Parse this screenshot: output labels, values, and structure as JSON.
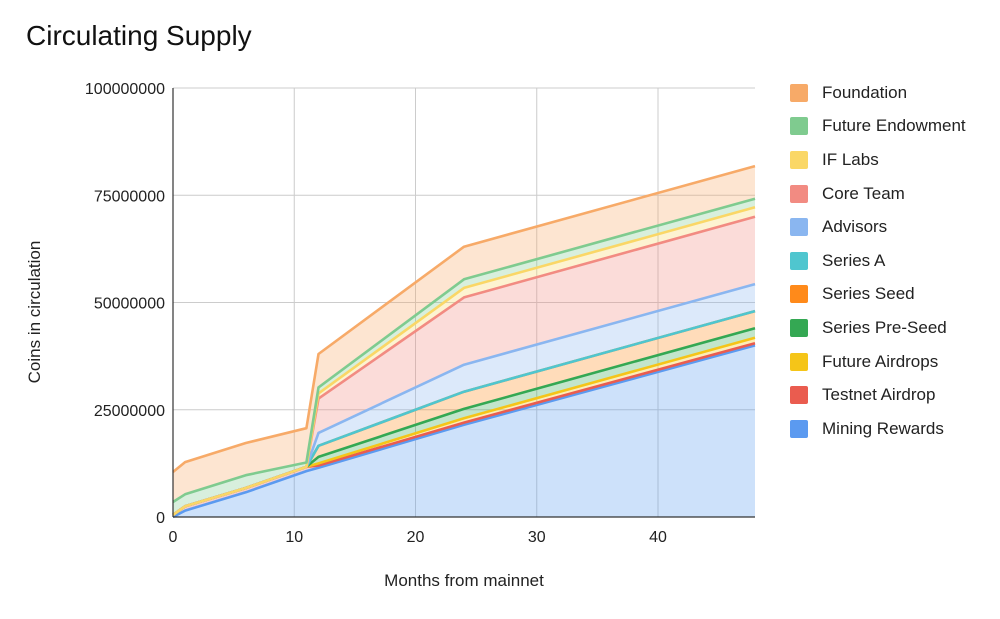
{
  "chart_data": {
    "type": "area",
    "stacked": true,
    "title": "Circulating Supply",
    "xlabel": "Months from mainnet",
    "ylabel": "Coins in circulation",
    "xlim": [
      0,
      48
    ],
    "ylim": [
      0,
      100000000
    ],
    "x_ticks": [
      0,
      10,
      20,
      30,
      40
    ],
    "y_ticks": [
      "0",
      "25000000",
      "50000000",
      "75000000",
      "100000000"
    ],
    "grid": true,
    "legend_position": "right",
    "series": [
      {
        "name": "Mining Rewards",
        "color": "#5b9af0",
        "points": [
          [
            0,
            0
          ],
          [
            1,
            1500000
          ],
          [
            6,
            5750000
          ],
          [
            11,
            10700000
          ],
          [
            12,
            11500000
          ],
          [
            24,
            21500000
          ],
          [
            48,
            40000000
          ]
        ]
      },
      {
        "name": "Testnet Airdrop",
        "color": "#ea5c4f",
        "points": [
          [
            0,
            500000
          ],
          [
            1,
            1000000
          ],
          [
            6,
            1000000
          ],
          [
            11,
            1000000
          ],
          [
            12,
            500000
          ],
          [
            24,
            500000
          ],
          [
            48,
            500000
          ]
        ]
      },
      {
        "name": "Future Airdrops",
        "color": "#f5c518",
        "points": [
          [
            0,
            0
          ],
          [
            1,
            0
          ],
          [
            6,
            0
          ],
          [
            11,
            0
          ],
          [
            12,
            500000
          ],
          [
            24,
            1000000
          ],
          [
            48,
            1300000
          ]
        ]
      },
      {
        "name": "Series Pre-Seed",
        "color": "#34a853",
        "points": [
          [
            0,
            0
          ],
          [
            1,
            0
          ],
          [
            6,
            0
          ],
          [
            11,
            0
          ],
          [
            12,
            1500000
          ],
          [
            24,
            2200000
          ],
          [
            48,
            2200000
          ]
        ]
      },
      {
        "name": "Series Seed",
        "color": "#ff8a1a",
        "points": [
          [
            0,
            0
          ],
          [
            1,
            0
          ],
          [
            6,
            0
          ],
          [
            11,
            0
          ],
          [
            12,
            2600000
          ],
          [
            24,
            4000000
          ],
          [
            48,
            4000000
          ]
        ]
      },
      {
        "name": "Series A",
        "color": "#4fc6cf",
        "points": [
          [
            0,
            0
          ],
          [
            1,
            0
          ],
          [
            6,
            0
          ],
          [
            11,
            0
          ],
          [
            12,
            0
          ],
          [
            24,
            0
          ],
          [
            48,
            0
          ]
        ]
      },
      {
        "name": "Advisors",
        "color": "#8ab6f0",
        "points": [
          [
            0,
            0
          ],
          [
            1,
            0
          ],
          [
            6,
            0
          ],
          [
            11,
            0
          ],
          [
            12,
            3000000
          ],
          [
            24,
            6300000
          ],
          [
            48,
            6300000
          ]
        ]
      },
      {
        "name": "Core Team",
        "color": "#f28b82",
        "points": [
          [
            0,
            0
          ],
          [
            1,
            0
          ],
          [
            6,
            0
          ],
          [
            11,
            0
          ],
          [
            12,
            8000000
          ],
          [
            24,
            15700000
          ],
          [
            48,
            15700000
          ]
        ]
      },
      {
        "name": "IF Labs",
        "color": "#fad766",
        "points": [
          [
            0,
            0
          ],
          [
            1,
            0
          ],
          [
            6,
            0
          ],
          [
            11,
            0
          ],
          [
            12,
            1200000
          ],
          [
            24,
            2200000
          ],
          [
            48,
            2200000
          ]
        ]
      },
      {
        "name": "Future Endowment",
        "color": "#7fcb8f",
        "points": [
          [
            0,
            3000000
          ],
          [
            1,
            2800000
          ],
          [
            6,
            3000000
          ],
          [
            11,
            1000000
          ],
          [
            12,
            1400000
          ],
          [
            24,
            2000000
          ],
          [
            48,
            2000000
          ]
        ]
      },
      {
        "name": "Foundation",
        "color": "#f7aa68",
        "points": [
          [
            0,
            7000000
          ],
          [
            1,
            7500000
          ],
          [
            6,
            7500000
          ],
          [
            11,
            8000000
          ],
          [
            12,
            7800000
          ],
          [
            24,
            7600000
          ],
          [
            48,
            7600000
          ]
        ]
      }
    ]
  }
}
